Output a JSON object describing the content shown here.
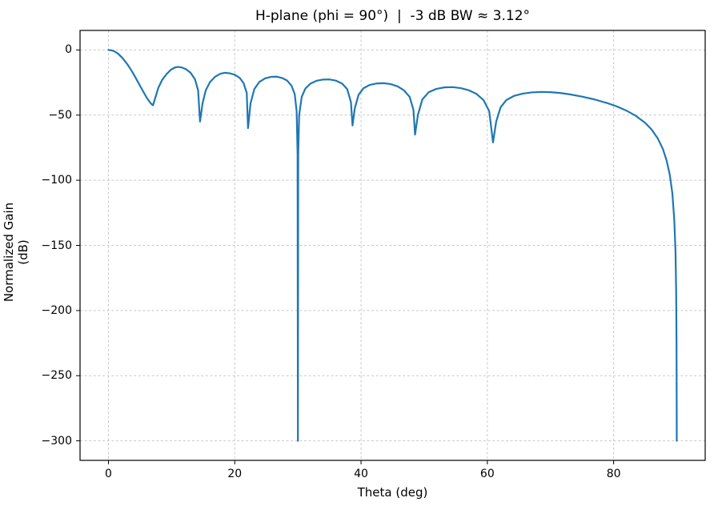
{
  "chart_data": {
    "type": "line",
    "title": "H-plane (phi = 90°)  |  -3 dB BW ≈ 3.12°",
    "xlabel": "Theta (deg)",
    "ylabel": "Normalized Gain (dB)",
    "xlim": [
      -4.5,
      94.5
    ],
    "ylim": [
      -315,
      15
    ],
    "xticks": [
      0,
      20,
      40,
      60,
      80
    ],
    "yticks": [
      0,
      -50,
      -100,
      -150,
      -200,
      -250,
      -300
    ],
    "grid": true,
    "grid_style": "dashed",
    "line_color": "#1f77b4",
    "bw_3db_deg": 3.12,
    "series": [
      {
        "name": "normalized-gain",
        "points": [
          [
            0,
            0
          ],
          [
            0.5,
            -0.3
          ],
          [
            1,
            -1.2
          ],
          [
            1.56,
            -3
          ],
          [
            2.2,
            -6.1
          ],
          [
            3,
            -11
          ],
          [
            3.8,
            -17
          ],
          [
            4.6,
            -24
          ],
          [
            5.4,
            -31
          ],
          [
            6.1,
            -37
          ],
          [
            6.7,
            -41
          ],
          [
            7.05,
            -42.5
          ],
          [
            7.4,
            -37
          ],
          [
            7.9,
            -29
          ],
          [
            8.5,
            -23
          ],
          [
            9.2,
            -18.5
          ],
          [
            9.9,
            -15.1
          ],
          [
            10.5,
            -13.5
          ],
          [
            11,
            -13
          ],
          [
            11.6,
            -13.4
          ],
          [
            12.3,
            -14.8
          ],
          [
            13,
            -17.5
          ],
          [
            13.7,
            -22.5
          ],
          [
            14.2,
            -31
          ],
          [
            14.5,
            -55
          ],
          [
            14.9,
            -41
          ],
          [
            15.4,
            -31
          ],
          [
            16.1,
            -24.5
          ],
          [
            16.9,
            -20.5
          ],
          [
            17.7,
            -18.3
          ],
          [
            18.4,
            -17.5
          ],
          [
            19.2,
            -17.9
          ],
          [
            20,
            -19
          ],
          [
            20.8,
            -21.5
          ],
          [
            21.4,
            -25.5
          ],
          [
            21.9,
            -33
          ],
          [
            22.1,
            -60
          ],
          [
            22.5,
            -41
          ],
          [
            23.1,
            -30
          ],
          [
            23.9,
            -24.5
          ],
          [
            24.8,
            -21.8
          ],
          [
            25.8,
            -20.6
          ],
          [
            26.7,
            -20.5
          ],
          [
            27.5,
            -21.5
          ],
          [
            28.3,
            -23.5
          ],
          [
            29,
            -27.5
          ],
          [
            29.5,
            -34
          ],
          [
            29.8,
            -47
          ],
          [
            29.95,
            -80
          ],
          [
            30,
            -300
          ],
          [
            30.05,
            -80
          ],
          [
            30.2,
            -50
          ],
          [
            30.6,
            -36
          ],
          [
            31.2,
            -29.5
          ],
          [
            32,
            -25.8
          ],
          [
            33,
            -23.6
          ],
          [
            34,
            -22.7
          ],
          [
            35,
            -22.6
          ],
          [
            36,
            -23.5
          ],
          [
            37,
            -25.8
          ],
          [
            37.8,
            -30
          ],
          [
            38.4,
            -40
          ],
          [
            38.65,
            -58
          ],
          [
            39,
            -45
          ],
          [
            39.6,
            -34.5
          ],
          [
            40.4,
            -29.3
          ],
          [
            41.4,
            -26.8
          ],
          [
            42.5,
            -25.7
          ],
          [
            43.6,
            -25.5
          ],
          [
            44.7,
            -26.2
          ],
          [
            45.8,
            -28
          ],
          [
            46.8,
            -31
          ],
          [
            47.7,
            -36
          ],
          [
            48.3,
            -46
          ],
          [
            48.55,
            -65
          ],
          [
            49,
            -50
          ],
          [
            49.7,
            -38
          ],
          [
            50.7,
            -32.5
          ],
          [
            51.9,
            -29.9
          ],
          [
            53.2,
            -28.7
          ],
          [
            54.5,
            -28.5
          ],
          [
            55.8,
            -29.3
          ],
          [
            57.1,
            -31
          ],
          [
            58.3,
            -33.8
          ],
          [
            59.4,
            -38.5
          ],
          [
            60.3,
            -47
          ],
          [
            60.9,
            -71
          ],
          [
            61.4,
            -55
          ],
          [
            62.1,
            -44
          ],
          [
            63,
            -38.5
          ],
          [
            64.2,
            -35.3
          ],
          [
            65.6,
            -33.5
          ],
          [
            67,
            -32.6
          ],
          [
            68.5,
            -32.2
          ],
          [
            70,
            -32.4
          ],
          [
            71.5,
            -33
          ],
          [
            73,
            -34
          ],
          [
            75,
            -35.8
          ],
          [
            77,
            -38
          ],
          [
            79,
            -40.8
          ],
          [
            80.5,
            -43.3
          ],
          [
            82,
            -46.5
          ],
          [
            83.5,
            -50.5
          ],
          [
            85,
            -56
          ],
          [
            86,
            -61
          ],
          [
            87,
            -68
          ],
          [
            87.8,
            -76
          ],
          [
            88.4,
            -85
          ],
          [
            88.9,
            -96
          ],
          [
            89.3,
            -110
          ],
          [
            89.6,
            -130
          ],
          [
            89.8,
            -155
          ],
          [
            89.9,
            -185
          ],
          [
            89.96,
            -225
          ],
          [
            90,
            -300
          ]
        ]
      }
    ]
  }
}
